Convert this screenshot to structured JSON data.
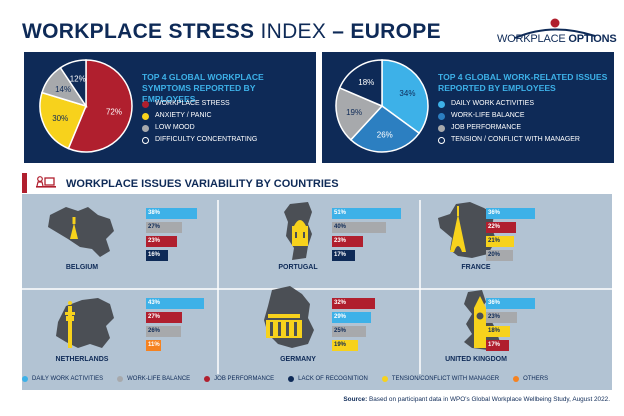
{
  "title": {
    "bold": "WORKPLACE STRESS",
    "light": " INDEX",
    "bold2": " – EUROPE"
  },
  "logo": {
    "part1": "WORKPLACE",
    "part2": "OPTIONS"
  },
  "colors": {
    "navy": "#0e2a57",
    "cyan": "#3db1e8",
    "red": "#b01f2e",
    "yellow": "#f7d21c",
    "gray": "#a7a9ac",
    "orange": "#f58220",
    "blue": "#2c7fc1"
  },
  "left_panel": {
    "title": "TOP 4 GLOBAL WORKPLACE SYMPTOMS REPORTED BY EMPLOYEES"
  },
  "right_panel": {
    "title": "TOP 4 GLOBAL WORK-RELATED ISSUES REPORTED BY EMPLOYEES"
  },
  "band": {
    "title": "WORKPLACE ISSUES VARIABILITY BY COUNTRIES"
  },
  "source": {
    "label": "Source:",
    "text": " Based on participant data in WPO's Global Workplace Wellbeing Study, August 2022."
  },
  "chart_data": [
    {
      "type": "pie",
      "title": "TOP 4 GLOBAL WORKPLACE SYMPTOMS REPORTED BY EMPLOYEES",
      "labels": [
        "WORKPLACE STRESS",
        "ANXIETY / PANIC",
        "LOW MOOD",
        "DIFFICULTY CONCENTRATING"
      ],
      "values": [
        72,
        30,
        14,
        12
      ],
      "slice_labels": [
        "72%",
        "30%",
        "14%",
        "12%"
      ],
      "colors": [
        "#b01f2e",
        "#f7d21c",
        "#a7a9ac",
        "#0e2a57"
      ]
    },
    {
      "type": "pie",
      "title": "TOP 4 GLOBAL WORK-RELATED ISSUES REPORTED BY EMPLOYEES",
      "labels": [
        "DAILY WORK ACTIVITIES",
        "WORK-LIFE BALANCE",
        "JOB PERFORMANCE",
        "TENSION / CONFLICT WITH MANAGER"
      ],
      "values": [
        34,
        26,
        19,
        18
      ],
      "slice_labels": [
        "34%",
        "26%",
        "19%",
        "18%"
      ],
      "colors": [
        "#3db1e8",
        "#2c7fc1",
        "#a7a9ac",
        "#0e2a57"
      ]
    },
    {
      "type": "bar",
      "title": "WORKPLACE ISSUES VARIABILITY BY COUNTRIES",
      "legend": [
        "DAILY WORK ACTIVITIES",
        "WORK-LIFE BALANCE",
        "JOB PERFORMANCE",
        "LACK OF RECOGNITION",
        "TENSION/CONFLICT WITH MANAGER",
        "OTHERS"
      ],
      "legend_colors": [
        "#3db1e8",
        "#a7a9ac",
        "#b01f2e",
        "#0e2a57",
        "#f7d21c",
        "#f58220"
      ],
      "countries": [
        {
          "name": "BELGIUM",
          "bars": [
            {
              "label": "38%",
              "value": 38,
              "cat": 0
            },
            {
              "label": "27%",
              "value": 27,
              "cat": 1
            },
            {
              "label": "23%",
              "value": 23,
              "cat": 2
            },
            {
              "label": "16%",
              "value": 16,
              "cat": 3
            }
          ]
        },
        {
          "name": "PORTUGAL",
          "bars": [
            {
              "label": "51%",
              "value": 51,
              "cat": 0
            },
            {
              "label": "40%",
              "value": 40,
              "cat": 1
            },
            {
              "label": "23%",
              "value": 23,
              "cat": 2
            },
            {
              "label": "17%",
              "value": 17,
              "cat": 3
            }
          ]
        },
        {
          "name": "FRANCE",
          "bars": [
            {
              "label": "36%",
              "value": 36,
              "cat": 0
            },
            {
              "label": "22%",
              "value": 22,
              "cat": 2
            },
            {
              "label": "21%",
              "value": 21,
              "cat": 4
            },
            {
              "label": "20%",
              "value": 20,
              "cat": 1
            }
          ]
        },
        {
          "name": "NETHERLANDS",
          "bars": [
            {
              "label": "43%",
              "value": 43,
              "cat": 0
            },
            {
              "label": "27%",
              "value": 27,
              "cat": 2
            },
            {
              "label": "26%",
              "value": 26,
              "cat": 1
            },
            {
              "label": "11%",
              "value": 11,
              "cat": 5
            }
          ]
        },
        {
          "name": "GERMANY",
          "bars": [
            {
              "label": "32%",
              "value": 32,
              "cat": 2
            },
            {
              "label": "29%",
              "value": 29,
              "cat": 0
            },
            {
              "label": "25%",
              "value": 25,
              "cat": 1
            },
            {
              "label": "19%",
              "value": 19,
              "cat": 4
            }
          ]
        },
        {
          "name": "UNITED KINGDOM",
          "bars": [
            {
              "label": "36%",
              "value": 36,
              "cat": 0
            },
            {
              "label": "23%",
              "value": 23,
              "cat": 1
            },
            {
              "label": "18%",
              "value": 18,
              "cat": 4
            },
            {
              "label": "17%",
              "value": 17,
              "cat": 2
            }
          ]
        }
      ]
    }
  ]
}
